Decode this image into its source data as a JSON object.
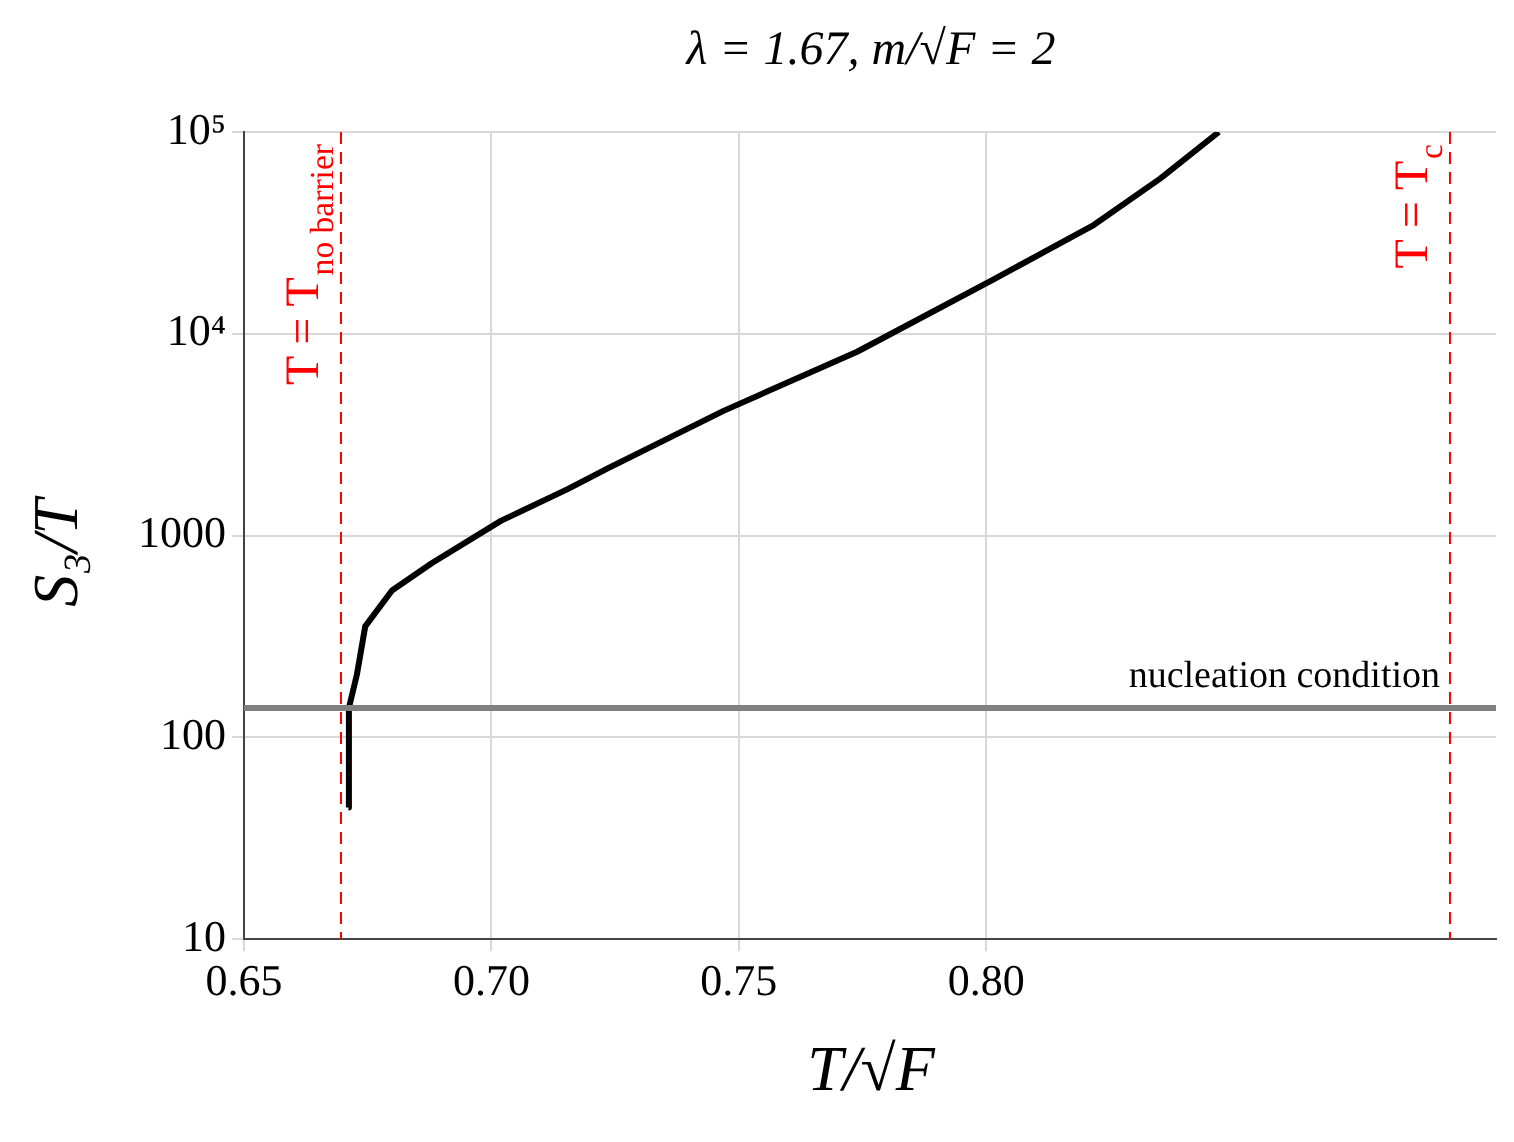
{
  "chart_data": {
    "type": "line",
    "title": "λ = 1.67,  m/√F = 2",
    "xlabel": "T/√F",
    "ylabel": "S₃/T",
    "x": [
      0.6711,
      0.6712,
      0.6728,
      0.6745,
      0.6799,
      0.688,
      0.7019,
      0.7154,
      0.7236,
      0.7469,
      0.7739,
      0.8013,
      0.8217,
      0.8352,
      0.847
    ],
    "series": [
      {
        "color": "#000000",
        "values": [
          45,
          140,
          204,
          355,
          535,
          731,
          1183,
          1700,
          2160,
          4150,
          8150,
          18500,
          34600,
          58900,
          100000
        ]
      }
    ],
    "xlim": [
      0.65,
      0.903
    ],
    "xticks": [
      0.65,
      {
        "value": 0.7,
        "label": "0.70"
      },
      0.75,
      {
        "value": 0.8,
        "label": "0.80"
      }
    ],
    "ylim": [
      10,
      100000
    ],
    "yticks": [
      10,
      100,
      1000,
      {
        "value": 10000,
        "label": "10⁴"
      },
      {
        "value": 100000,
        "label": "10⁵"
      }
    ],
    "log": "y",
    "grid": true,
    "marker": "none",
    "line_style": "solid",
    "ref_lines": [
      {
        "axis": "x",
        "value": 0.6696,
        "label": "T = T$_{no barrier}$",
        "color": "#ff0000",
        "line_style": "dashed"
      },
      {
        "axis": "x",
        "value": 0.8937,
        "label": "T = T$_{c}$",
        "color": "#ff0000",
        "line_style": "dashed"
      },
      {
        "axis": "y",
        "value": 140,
        "label": "nucleation condition",
        "color": "#808080",
        "line_style": "solid"
      }
    ]
  }
}
